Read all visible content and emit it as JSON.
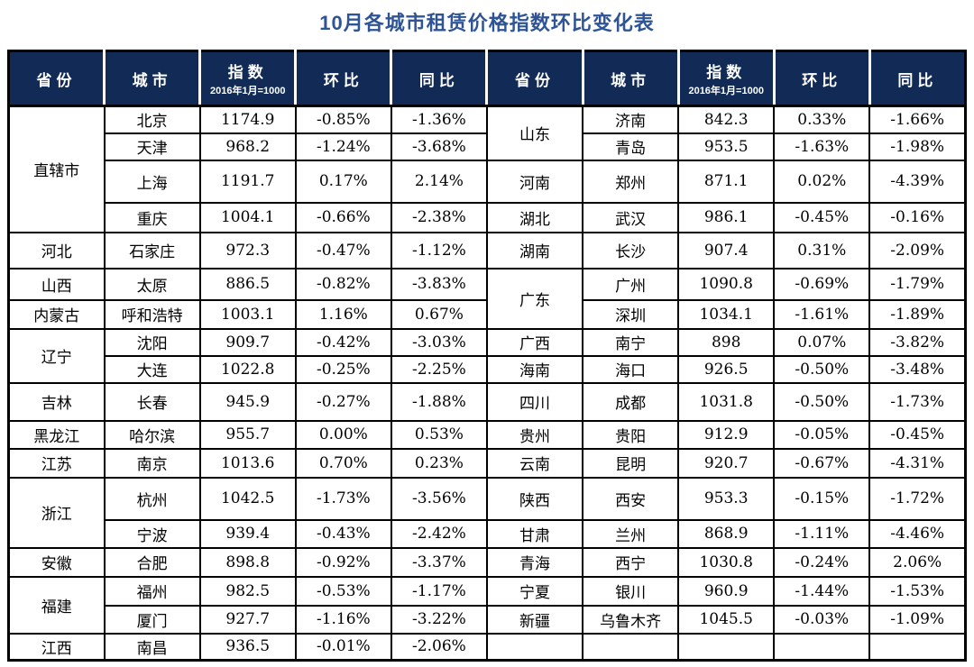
{
  "title": "10月各城市租赁价格指数环比变化表",
  "colors": {
    "title_text": "#2F5496",
    "header_bg": "#112B56",
    "header_text": "#FFFFFF",
    "grid_border": "#000000",
    "body_text": "#000000"
  },
  "chart_data": {
    "type": "table",
    "title": "10月各城市租赁价格指数环比变化表",
    "column_headers": [
      "省份",
      "城市",
      "指数",
      "环比",
      "同比"
    ],
    "index_base_note": "2016年1月=1000",
    "layout_note": "two side-by-side halves sharing one grid, provinces merged vertically",
    "halves": [
      {
        "groups": [
          {
            "province": "直辖市",
            "rows": [
              {
                "city": "北京",
                "index": "1174.9",
                "mom": "-0.85%",
                "yoy": "-1.36%"
              },
              {
                "city": "天津",
                "index": "968.2",
                "mom": "-1.24%",
                "yoy": "-3.68%"
              },
              {
                "city": "上海",
                "index": "1191.7",
                "mom": "0.17%",
                "yoy": "2.14%"
              },
              {
                "city": "重庆",
                "index": "1004.1",
                "mom": "-0.66%",
                "yoy": "-2.38%"
              }
            ]
          },
          {
            "province": "河北",
            "rows": [
              {
                "city": "石家庄",
                "index": "972.3",
                "mom": "-0.47%",
                "yoy": "-1.12%"
              }
            ]
          },
          {
            "province": "山西",
            "rows": [
              {
                "city": "太原",
                "index": "886.5",
                "mom": "-0.82%",
                "yoy": "-3.83%"
              }
            ]
          },
          {
            "province": "内蒙古",
            "rows": [
              {
                "city": "呼和浩特",
                "index": "1003.1",
                "mom": "1.16%",
                "yoy": "0.67%"
              }
            ]
          },
          {
            "province": "辽宁",
            "rows": [
              {
                "city": "沈阳",
                "index": "909.7",
                "mom": "-0.42%",
                "yoy": "-3.03%"
              },
              {
                "city": "大连",
                "index": "1022.8",
                "mom": "-0.25%",
                "yoy": "-2.25%"
              }
            ]
          },
          {
            "province": "吉林",
            "rows": [
              {
                "city": "长春",
                "index": "945.9",
                "mom": "-0.27%",
                "yoy": "-1.88%"
              }
            ]
          },
          {
            "province": "黑龙江",
            "rows": [
              {
                "city": "哈尔滨",
                "index": "955.7",
                "mom": "0.00%",
                "yoy": "0.53%"
              }
            ]
          },
          {
            "province": "江苏",
            "rows": [
              {
                "city": "南京",
                "index": "1013.6",
                "mom": "0.70%",
                "yoy": "0.23%"
              }
            ]
          },
          {
            "province": "浙江",
            "rows": [
              {
                "city": "杭州",
                "index": "1042.5",
                "mom": "-1.73%",
                "yoy": "-3.56%"
              },
              {
                "city": "宁波",
                "index": "939.4",
                "mom": "-0.43%",
                "yoy": "-2.42%"
              }
            ]
          },
          {
            "province": "安徽",
            "rows": [
              {
                "city": "合肥",
                "index": "898.8",
                "mom": "-0.92%",
                "yoy": "-3.37%"
              }
            ]
          },
          {
            "province": "福建",
            "rows": [
              {
                "city": "福州",
                "index": "982.5",
                "mom": "-0.53%",
                "yoy": "-1.17%"
              },
              {
                "city": "厦门",
                "index": "927.7",
                "mom": "-1.16%",
                "yoy": "-3.22%"
              }
            ]
          },
          {
            "province": "江西",
            "rows": [
              {
                "city": "南昌",
                "index": "936.5",
                "mom": "-0.01%",
                "yoy": "-2.06%"
              }
            ]
          }
        ]
      },
      {
        "groups": [
          {
            "province": "山东",
            "rows": [
              {
                "city": "济南",
                "index": "842.3",
                "mom": "0.33%",
                "yoy": "-1.66%"
              },
              {
                "city": "青岛",
                "index": "953.5",
                "mom": "-1.63%",
                "yoy": "-1.98%"
              }
            ]
          },
          {
            "province": "河南",
            "rows": [
              {
                "city": "郑州",
                "index": "871.1",
                "mom": "0.02%",
                "yoy": "-4.39%"
              }
            ]
          },
          {
            "province": "湖北",
            "rows": [
              {
                "city": "武汉",
                "index": "986.1",
                "mom": "-0.45%",
                "yoy": "-0.16%"
              }
            ]
          },
          {
            "province": "湖南",
            "rows": [
              {
                "city": "长沙",
                "index": "907.4",
                "mom": "0.31%",
                "yoy": "-2.09%"
              }
            ]
          },
          {
            "province": "广东",
            "rows": [
              {
                "city": "广州",
                "index": "1090.8",
                "mom": "-0.69%",
                "yoy": "-1.79%"
              },
              {
                "city": "深圳",
                "index": "1034.1",
                "mom": "-1.61%",
                "yoy": "-1.89%"
              }
            ]
          },
          {
            "province": "广西",
            "rows": [
              {
                "city": "南宁",
                "index": "898",
                "mom": "0.07%",
                "yoy": "-3.82%"
              }
            ]
          },
          {
            "province": "海南",
            "rows": [
              {
                "city": "海口",
                "index": "926.5",
                "mom": "-0.50%",
                "yoy": "-3.48%"
              }
            ]
          },
          {
            "province": "四川",
            "rows": [
              {
                "city": "成都",
                "index": "1031.8",
                "mom": "-0.50%",
                "yoy": "-1.73%"
              }
            ]
          },
          {
            "province": "贵州",
            "rows": [
              {
                "city": "贵阳",
                "index": "912.9",
                "mom": "-0.05%",
                "yoy": "-0.45%"
              }
            ]
          },
          {
            "province": "云南",
            "rows": [
              {
                "city": "昆明",
                "index": "920.7",
                "mom": "-0.67%",
                "yoy": "-4.31%"
              }
            ]
          },
          {
            "province": "陕西",
            "rows": [
              {
                "city": "西安",
                "index": "953.3",
                "mom": "-0.15%",
                "yoy": "-1.72%"
              }
            ]
          },
          {
            "province": "甘肃",
            "rows": [
              {
                "city": "兰州",
                "index": "868.9",
                "mom": "-1.11%",
                "yoy": "-4.46%"
              }
            ]
          },
          {
            "province": "青海",
            "rows": [
              {
                "city": "西宁",
                "index": "1030.8",
                "mom": "-0.24%",
                "yoy": "2.06%"
              }
            ]
          },
          {
            "province": "宁夏",
            "rows": [
              {
                "city": "银川",
                "index": "960.9",
                "mom": "-1.44%",
                "yoy": "-1.53%"
              }
            ]
          },
          {
            "province": "新疆",
            "rows": [
              {
                "city": "乌鲁木齐",
                "index": "1045.5",
                "mom": "-0.03%",
                "yoy": "-1.09%"
              }
            ]
          },
          {
            "province": "",
            "rows": [
              {
                "city": "",
                "index": "",
                "mom": "",
                "yoy": ""
              }
            ]
          }
        ]
      }
    ]
  }
}
